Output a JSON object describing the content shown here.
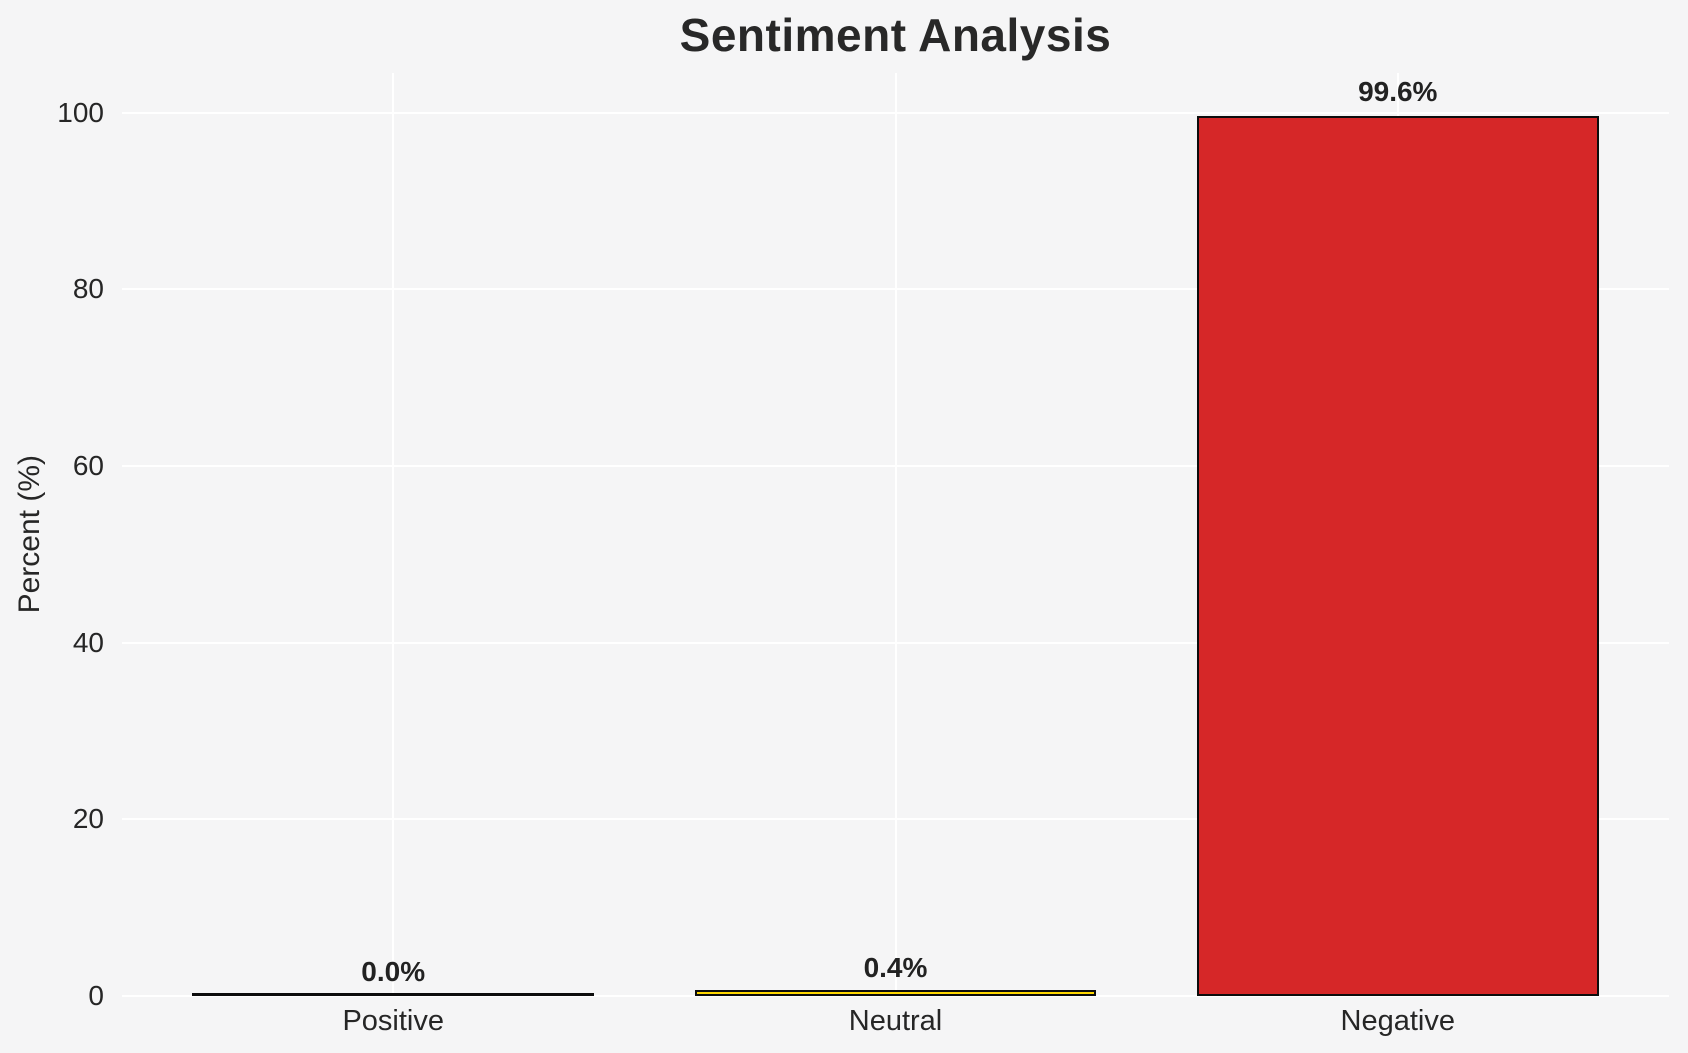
{
  "figure": {
    "background_color": "#f5f5f6"
  },
  "chart_data": {
    "type": "bar",
    "title": "Sentiment Analysis",
    "xlabel": "",
    "ylabel": "Percent (%)",
    "categories": [
      "Positive",
      "Neutral",
      "Negative"
    ],
    "values": [
      0.0,
      0.4,
      99.6
    ],
    "value_labels": [
      "0.0%",
      "0.4%",
      "99.6%"
    ],
    "bar_colors": [
      null,
      "#ffd700",
      "#d62728"
    ],
    "bar_edge_color": "#0d0d0d",
    "bar_width_fraction": 0.8,
    "xlim": [
      -0.54,
      2.54
    ],
    "ylim": [
      0,
      104.5
    ],
    "yticks": [
      0,
      20,
      40,
      60,
      80,
      100
    ],
    "grid": true,
    "grid_color": "#ffffff",
    "background_color": "#f5f5f6",
    "text_color": "#262626",
    "legend": false
  }
}
